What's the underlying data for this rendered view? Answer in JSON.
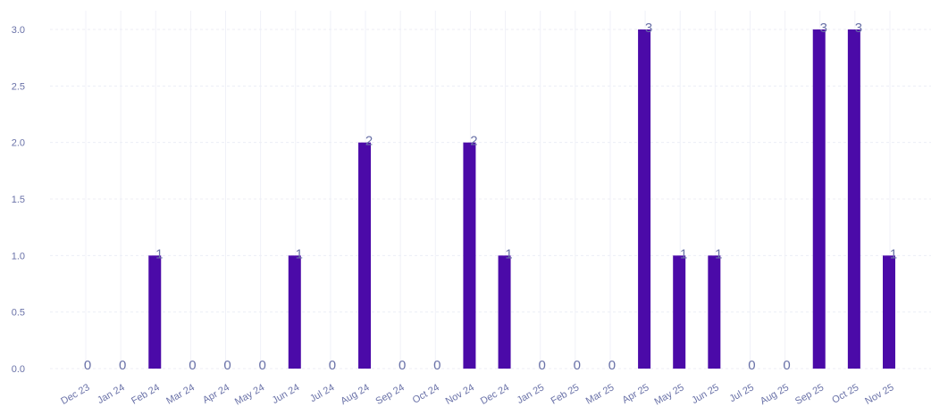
{
  "chart_data": {
    "type": "bar",
    "categories": [
      "Dec 23",
      "Jan 24",
      "Feb 24",
      "Mar 24",
      "Apr 24",
      "May 24",
      "Jun 24",
      "Jul 24",
      "Aug 24",
      "Sep 24",
      "Oct 24",
      "Nov 24",
      "Dec 24",
      "Jan 25",
      "Feb 25",
      "Mar 25",
      "Apr 25",
      "May 25",
      "Jun 25",
      "Jul 25",
      "Aug 25",
      "Sep 25",
      "Oct 25",
      "Nov 25"
    ],
    "values": [
      0,
      0,
      1,
      0,
      0,
      0,
      1,
      0,
      2,
      0,
      0,
      2,
      1,
      0,
      0,
      0,
      3,
      1,
      1,
      0,
      0,
      3,
      3,
      1
    ],
    "data_labels": [
      "0",
      "0",
      "1",
      "0",
      "0",
      "0",
      "1",
      "0",
      "2",
      "0",
      "0",
      "2",
      "1",
      "0",
      "0",
      "0",
      "3",
      "1",
      "1",
      "0",
      "0",
      "3",
      "3",
      "1"
    ],
    "yticks": [
      "0.0",
      "0.5",
      "1.0",
      "1.5",
      "2.0",
      "2.5",
      "3.0"
    ],
    "ylim": [
      0,
      3
    ],
    "title": "",
    "xlabel": "",
    "ylabel": "",
    "grid": true,
    "legend": "none",
    "colors": {
      "bar": "#4b0aa8",
      "label": "#6a72a8",
      "grid": "#eceef6"
    }
  }
}
